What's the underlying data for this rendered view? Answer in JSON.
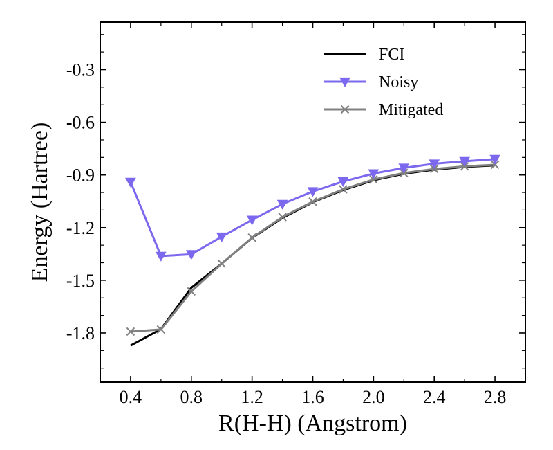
{
  "chart_data": {
    "type": "line",
    "title": "",
    "xlabel": "R(H-H) (Angstrom)",
    "ylabel": "Energy (Hartree)",
    "xlim": [
      0.2,
      3.0
    ],
    "ylim": [
      -2.08,
      -0.03
    ],
    "xticks": [
      0.4,
      0.8,
      1.2,
      1.6,
      2.0,
      2.4,
      2.8
    ],
    "xtick_labels": [
      "0.4",
      "0.8",
      "1.2",
      "1.6",
      "2.0",
      "2.4",
      "2.8"
    ],
    "yticks": [
      -1.8,
      -1.5,
      -1.2,
      -0.9,
      -0.6,
      -0.3
    ],
    "ytick_labels": [
      "-1.8",
      "-1.5",
      "-1.2",
      "-0.9",
      "-0.6",
      "-0.3"
    ],
    "legend_position": "top-right",
    "x": [
      0.4,
      0.6,
      0.8,
      1.0,
      1.2,
      1.4,
      1.6,
      1.8,
      2.0,
      2.2,
      2.4,
      2.6,
      2.8
    ],
    "series": [
      {
        "name": "FCI",
        "color": "#000000",
        "marker": "none",
        "values": [
          -1.872,
          -1.778,
          -1.542,
          -1.405,
          -1.259,
          -1.145,
          -1.055,
          -0.986,
          -0.93,
          -0.893,
          -0.87,
          -0.854,
          -0.845
        ]
      },
      {
        "name": "Noisy",
        "color": "#7B68EE",
        "marker": "triangle-down",
        "values": [
          -0.94,
          -1.362,
          -1.352,
          -1.252,
          -1.156,
          -1.066,
          -0.994,
          -0.937,
          -0.892,
          -0.86,
          -0.836,
          -0.822,
          -0.81
        ]
      },
      {
        "name": "Mitigated",
        "color": "#808080",
        "marker": "x",
        "values": [
          -1.792,
          -1.78,
          -1.563,
          -1.405,
          -1.257,
          -1.14,
          -1.052,
          -0.982,
          -0.926,
          -0.889,
          -0.866,
          -0.851,
          -0.842
        ]
      }
    ]
  }
}
